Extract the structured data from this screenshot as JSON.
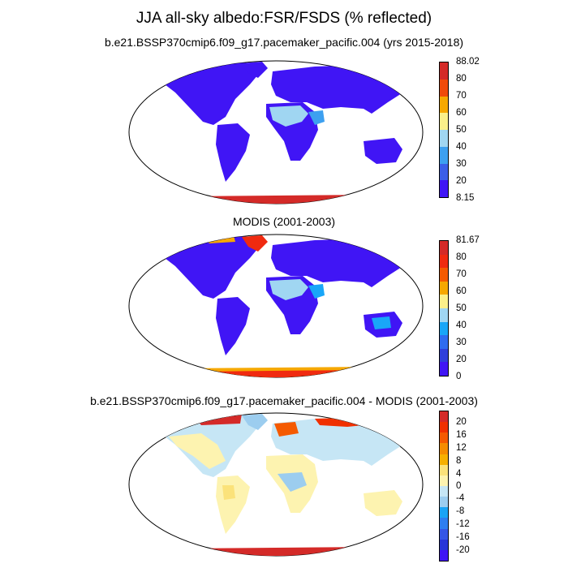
{
  "title": "JJA all-sky albedo:FSR/FSDS (% reflected)",
  "panels": [
    {
      "subtitle": "b.e21.BSSP370cmip6.f09_g17.pacemaker_pacific.004 (yrs 2015-2018)",
      "colorbar": {
        "colors": [
          "#4015f5",
          "#3b5fe8",
          "#3da0f0",
          "#a0d6f2",
          "#fbf08a",
          "#f6a800",
          "#f04a0a",
          "#d42a28"
        ],
        "labels": [
          "88.02",
          "80",
          "70",
          "60",
          "50",
          "40",
          "30",
          "20",
          "8.15"
        ]
      }
    },
    {
      "subtitle": "MODIS (2001-2003)",
      "colorbar": {
        "colors": [
          "#4015f5",
          "#2f3fdb",
          "#2f6cf0",
          "#19a6f8",
          "#a0d6f2",
          "#fbf08a",
          "#f6a800",
          "#f55a00",
          "#f02a10",
          "#d42a28"
        ],
        "labels": [
          "81.67",
          "80",
          "70",
          "60",
          "50",
          "40",
          "30",
          "20",
          "0"
        ]
      }
    },
    {
      "subtitle": "b.e21.BSSP370cmip6.f09_g17.pacemaker_pacific.004 - MODIS (2001-2003)",
      "colorbar": {
        "colors": [
          "#4015f5",
          "#2836d8",
          "#3556e5",
          "#2e7ef0",
          "#1aa4f5",
          "#9ccdef",
          "#c6e6f5",
          "#fdf3b0",
          "#fbe27a",
          "#f6b000",
          "#f58c00",
          "#f55a00",
          "#f03000",
          "#d42a28"
        ],
        "labels": [
          "20",
          "16",
          "12",
          "8",
          "4",
          "0",
          "-4",
          "-8",
          "-12",
          "-16",
          "-20"
        ]
      }
    }
  ]
}
